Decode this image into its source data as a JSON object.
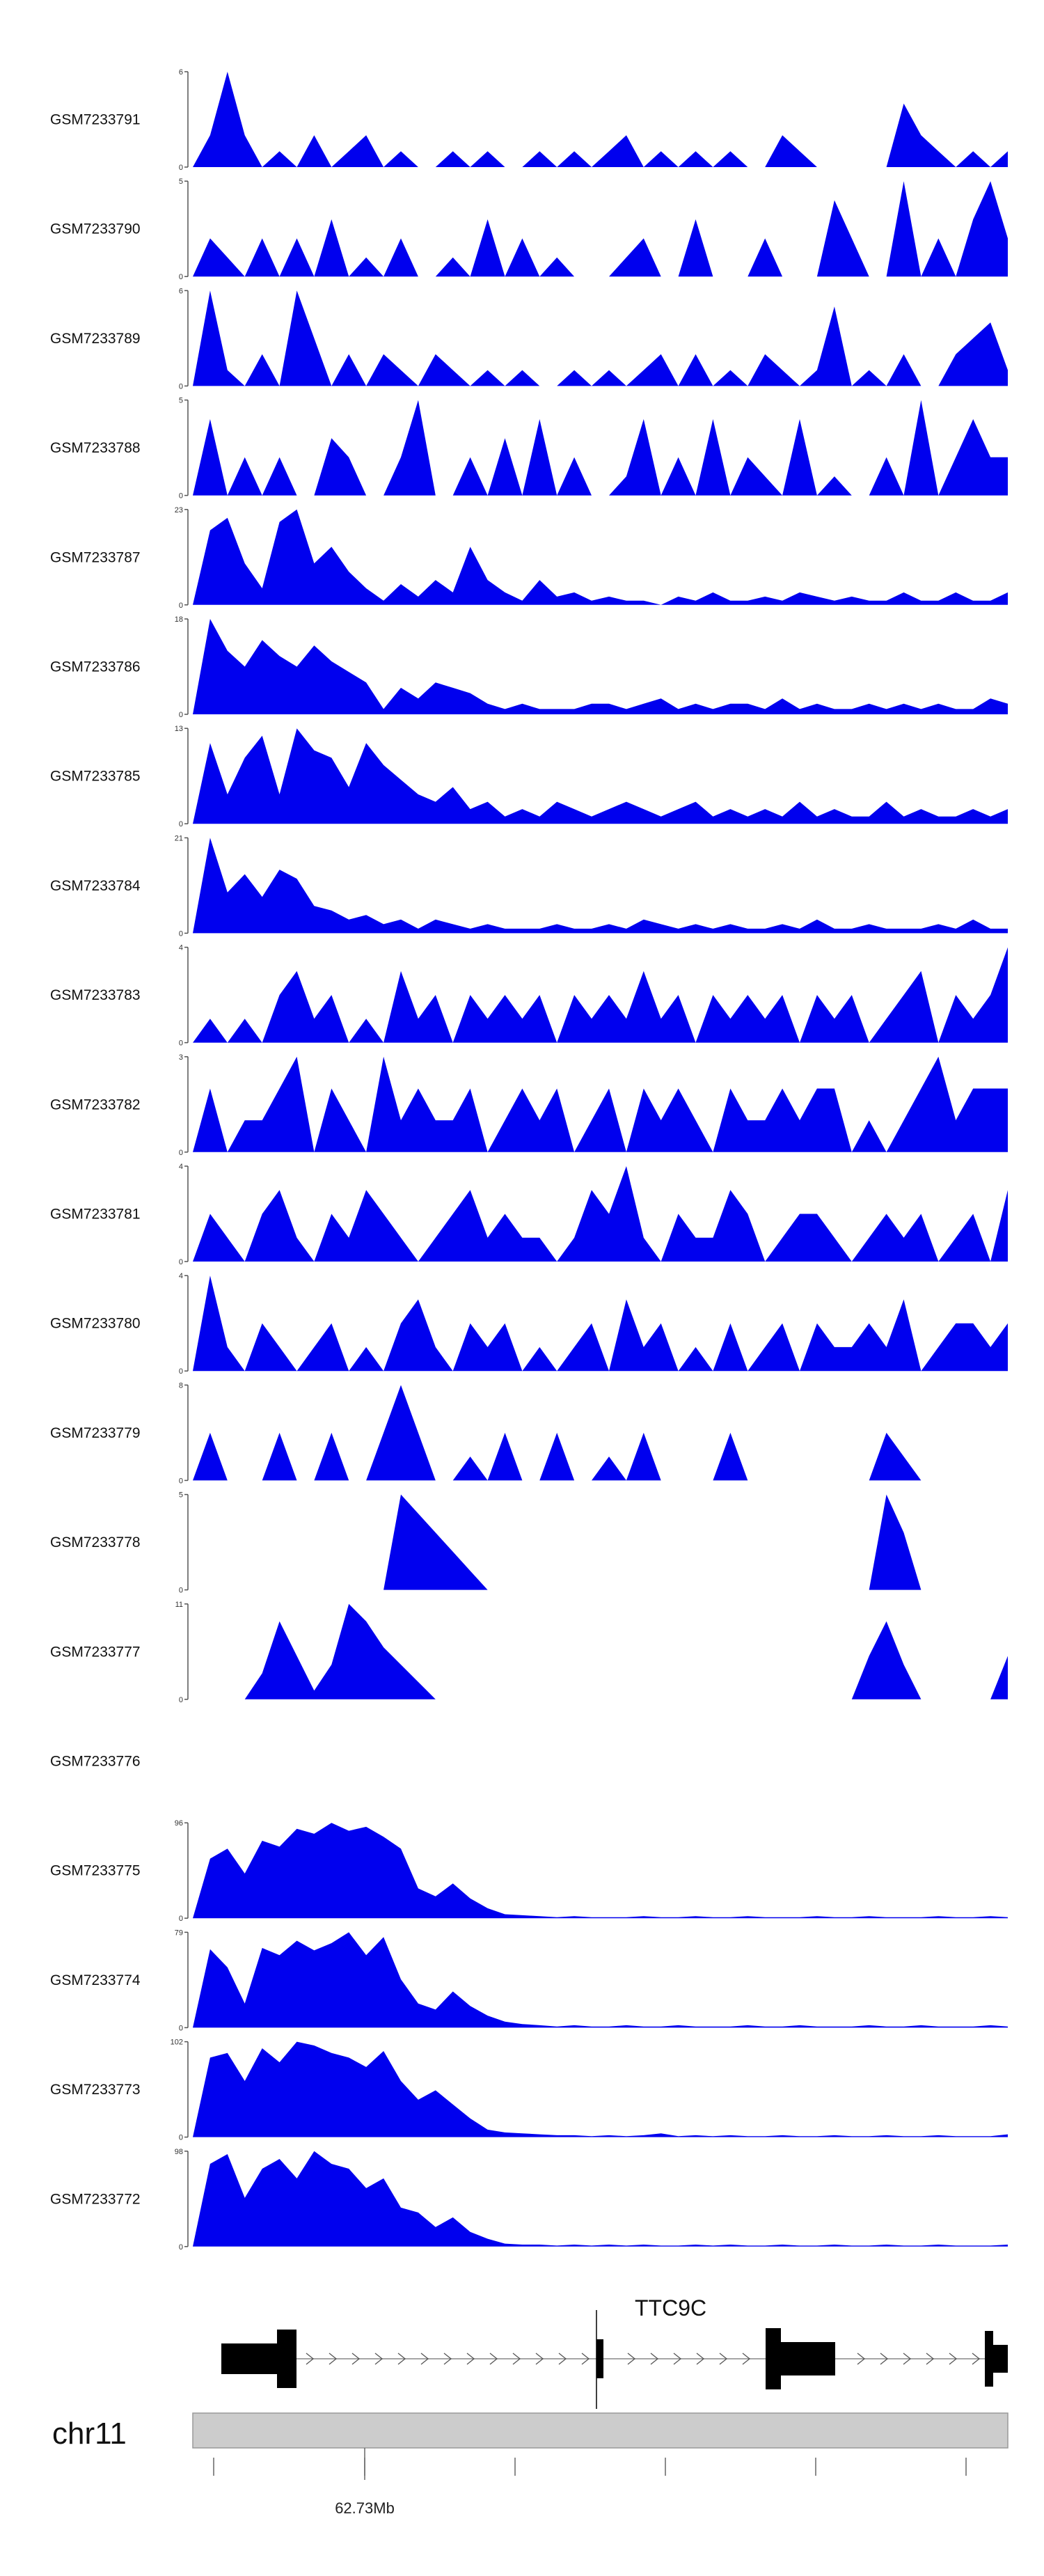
{
  "chart_data": {
    "type": "area",
    "title": "",
    "chromosome": "chr11",
    "position_label": "62.73Mb",
    "gene": "TTC9C",
    "fill_color": "#0000ee",
    "axis_color": "#555555",
    "n_points": 48,
    "tracks": [
      {
        "name": "GSM7233791",
        "ymax": 6,
        "values": [
          0,
          2,
          6,
          2,
          0,
          1,
          0,
          2,
          0,
          1,
          2,
          0,
          1,
          0,
          0,
          1,
          0,
          1,
          0,
          0,
          1,
          0,
          1,
          0,
          1,
          2,
          0,
          1,
          0,
          1,
          0,
          1,
          0,
          0,
          2,
          1,
          0,
          0,
          0,
          0,
          0,
          4,
          2,
          1,
          0,
          1,
          0,
          1
        ]
      },
      {
        "name": "GSM7233790",
        "ymax": 5,
        "values": [
          0,
          2,
          1,
          0,
          2,
          0,
          2,
          0,
          3,
          0,
          1,
          0,
          2,
          0,
          0,
          1,
          0,
          3,
          0,
          2,
          0,
          1,
          0,
          0,
          0,
          1,
          2,
          0,
          0,
          3,
          0,
          0,
          0,
          2,
          0,
          0,
          0,
          4,
          2,
          0,
          0,
          5,
          0,
          2,
          0,
          3,
          5,
          2
        ]
      },
      {
        "name": "GSM7233789",
        "ymax": 6,
        "values": [
          0,
          6,
          1,
          0,
          2,
          0,
          6,
          3,
          0,
          2,
          0,
          2,
          1,
          0,
          2,
          1,
          0,
          1,
          0,
          1,
          0,
          0,
          1,
          0,
          1,
          0,
          1,
          2,
          0,
          2,
          0,
          1,
          0,
          2,
          1,
          0,
          1,
          5,
          0,
          1,
          0,
          2,
          0,
          0,
          2,
          3,
          4,
          1
        ]
      },
      {
        "name": "GSM7233788",
        "ymax": 5,
        "values": [
          0,
          4,
          0,
          2,
          0,
          2,
          0,
          0,
          3,
          2,
          0,
          0,
          2,
          5,
          0,
          0,
          2,
          0,
          3,
          0,
          4,
          0,
          2,
          0,
          0,
          1,
          4,
          0,
          2,
          0,
          4,
          0,
          2,
          1,
          0,
          4,
          0,
          1,
          0,
          0,
          2,
          0,
          5,
          0,
          2,
          4,
          2,
          2
        ]
      },
      {
        "name": "GSM7233787",
        "ymax": 23,
        "values": [
          0,
          18,
          21,
          10,
          4,
          20,
          23,
          10,
          14,
          8,
          4,
          1,
          5,
          2,
          6,
          3,
          14,
          6,
          3,
          1,
          6,
          2,
          3,
          1,
          2,
          1,
          1,
          0,
          2,
          1,
          3,
          1,
          1,
          2,
          1,
          3,
          2,
          1,
          2,
          1,
          1,
          3,
          1,
          1,
          3,
          1,
          1,
          3
        ]
      },
      {
        "name": "GSM7233786",
        "ymax": 18,
        "values": [
          0,
          18,
          12,
          9,
          14,
          11,
          9,
          13,
          10,
          8,
          6,
          1,
          5,
          3,
          6,
          5,
          4,
          2,
          1,
          2,
          1,
          1,
          1,
          2,
          2,
          1,
          2,
          3,
          1,
          2,
          1,
          2,
          2,
          1,
          3,
          1,
          2,
          1,
          1,
          2,
          1,
          2,
          1,
          2,
          1,
          1,
          3,
          2
        ]
      },
      {
        "name": "GSM7233785",
        "ymax": 13,
        "values": [
          0,
          11,
          4,
          9,
          12,
          4,
          13,
          10,
          9,
          5,
          11,
          8,
          6,
          4,
          3,
          5,
          2,
          3,
          1,
          2,
          1,
          3,
          2,
          1,
          2,
          3,
          2,
          1,
          2,
          3,
          1,
          2,
          1,
          2,
          1,
          3,
          1,
          2,
          1,
          1,
          3,
          1,
          2,
          1,
          1,
          2,
          1,
          2
        ]
      },
      {
        "name": "GSM7233784",
        "ymax": 21,
        "values": [
          0,
          21,
          9,
          13,
          8,
          14,
          12,
          6,
          5,
          3,
          4,
          2,
          3,
          1,
          3,
          2,
          1,
          2,
          1,
          1,
          1,
          2,
          1,
          1,
          2,
          1,
          3,
          2,
          1,
          2,
          1,
          2,
          1,
          1,
          2,
          1,
          3,
          1,
          1,
          2,
          1,
          1,
          1,
          2,
          1,
          3,
          1,
          1
        ]
      },
      {
        "name": "GSM7233783",
        "ymax": 4,
        "values": [
          0,
          1,
          0,
          1,
          0,
          2,
          3,
          1,
          2,
          0,
          1,
          0,
          3,
          1,
          2,
          0,
          2,
          1,
          2,
          1,
          2,
          0,
          2,
          1,
          2,
          1,
          3,
          1,
          2,
          0,
          2,
          1,
          2,
          1,
          2,
          0,
          2,
          1,
          2,
          0,
          1,
          2,
          3,
          0,
          2,
          1,
          2,
          4
        ]
      },
      {
        "name": "GSM7233782",
        "ymax": 3,
        "values": [
          0,
          2,
          0,
          1,
          1,
          2,
          3,
          0,
          2,
          1,
          0,
          3,
          1,
          2,
          1,
          1,
          2,
          0,
          1,
          2,
          1,
          2,
          0,
          1,
          2,
          0,
          2,
          1,
          2,
          1,
          0,
          2,
          1,
          1,
          2,
          1,
          2,
          2,
          0,
          1,
          0,
          1,
          2,
          3,
          1,
          2,
          2,
          2
        ]
      },
      {
        "name": "GSM7233781",
        "ymax": 4,
        "values": [
          0,
          2,
          1,
          0,
          2,
          3,
          1,
          0,
          2,
          1,
          3,
          2,
          1,
          0,
          1,
          2,
          3,
          1,
          2,
          1,
          1,
          0,
          1,
          3,
          2,
          4,
          1,
          0,
          2,
          1,
          1,
          3,
          2,
          0,
          1,
          2,
          2,
          1,
          0,
          1,
          2,
          1,
          2,
          0,
          1,
          2,
          0,
          3
        ]
      },
      {
        "name": "GSM7233780",
        "ymax": 4,
        "values": [
          0,
          4,
          1,
          0,
          2,
          1,
          0,
          1,
          2,
          0,
          1,
          0,
          2,
          3,
          1,
          0,
          2,
          1,
          2,
          0,
          1,
          0,
          1,
          2,
          0,
          3,
          1,
          2,
          0,
          1,
          0,
          2,
          0,
          1,
          2,
          0,
          2,
          1,
          1,
          2,
          1,
          3,
          0,
          1,
          2,
          2,
          1,
          2
        ]
      },
      {
        "name": "GSM7233779",
        "ymax": 8,
        "values": [
          0,
          4,
          0,
          0,
          0,
          4,
          0,
          0,
          4,
          0,
          0,
          4,
          8,
          4,
          0,
          0,
          2,
          0,
          4,
          0,
          0,
          4,
          0,
          0,
          2,
          0,
          4,
          0,
          0,
          0,
          0,
          4,
          0,
          0,
          0,
          0,
          0,
          0,
          0,
          0,
          4,
          2,
          0,
          0,
          0,
          0,
          0,
          0
        ]
      },
      {
        "name": "GSM7233778",
        "ymax": 5,
        "values": [
          0,
          0,
          0,
          0,
          0,
          0,
          0,
          0,
          0,
          0,
          0,
          0,
          5,
          4,
          3,
          2,
          1,
          0,
          0,
          0,
          0,
          0,
          0,
          0,
          0,
          0,
          0,
          0,
          0,
          0,
          0,
          0,
          0,
          0,
          0,
          0,
          0,
          0,
          0,
          0,
          5,
          3,
          0,
          0,
          0,
          0,
          0,
          0
        ]
      },
      {
        "name": "GSM7233777",
        "ymax": 11,
        "values": [
          0,
          0,
          0,
          0,
          3,
          9,
          5,
          1,
          4,
          11,
          9,
          6,
          4,
          2,
          0,
          0,
          0,
          0,
          0,
          0,
          0,
          0,
          0,
          0,
          0,
          0,
          0,
          0,
          0,
          0,
          0,
          0,
          0,
          0,
          0,
          0,
          0,
          0,
          0,
          5,
          9,
          4,
          0,
          0,
          0,
          0,
          0,
          5
        ]
      },
      {
        "name": "GSM7233776",
        "ymax": 0,
        "values": []
      },
      {
        "name": "GSM7233775",
        "ymax": 96,
        "values": [
          0,
          60,
          70,
          45,
          78,
          72,
          90,
          85,
          96,
          88,
          92,
          82,
          70,
          30,
          22,
          35,
          20,
          10,
          4,
          3,
          2,
          1,
          2,
          1,
          1,
          1,
          2,
          1,
          1,
          2,
          1,
          1,
          2,
          1,
          1,
          1,
          2,
          1,
          1,
          2,
          1,
          1,
          1,
          2,
          1,
          1,
          2,
          1
        ]
      },
      {
        "name": "GSM7233774",
        "ymax": 79,
        "values": [
          0,
          65,
          50,
          20,
          66,
          60,
          72,
          64,
          70,
          79,
          60,
          75,
          40,
          20,
          15,
          30,
          18,
          10,
          5,
          3,
          2,
          1,
          2,
          1,
          1,
          2,
          1,
          1,
          2,
          1,
          1,
          1,
          2,
          1,
          1,
          2,
          1,
          1,
          1,
          2,
          1,
          1,
          2,
          1,
          1,
          1,
          2,
          1
        ]
      },
      {
        "name": "GSM7233773",
        "ymax": 102,
        "values": [
          0,
          85,
          90,
          60,
          95,
          80,
          102,
          98,
          90,
          85,
          75,
          92,
          60,
          40,
          50,
          35,
          20,
          8,
          5,
          4,
          3,
          2,
          2,
          1,
          2,
          1,
          2,
          4,
          1,
          2,
          1,
          2,
          1,
          1,
          2,
          1,
          1,
          2,
          1,
          1,
          2,
          1,
          1,
          2,
          1,
          1,
          1,
          3
        ]
      },
      {
        "name": "GSM7233772",
        "ymax": 98,
        "values": [
          0,
          85,
          95,
          50,
          80,
          90,
          70,
          98,
          85,
          80,
          60,
          70,
          40,
          35,
          20,
          30,
          15,
          8,
          3,
          2,
          2,
          1,
          2,
          1,
          2,
          1,
          2,
          1,
          1,
          2,
          1,
          2,
          1,
          1,
          2,
          1,
          1,
          2,
          1,
          1,
          2,
          1,
          1,
          2,
          1,
          1,
          1,
          2
        ]
      }
    ]
  }
}
